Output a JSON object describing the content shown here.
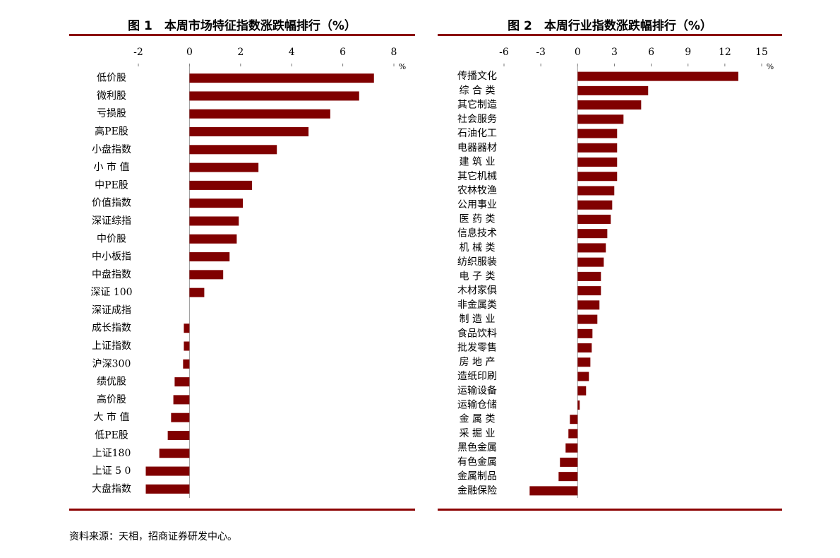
{
  "chart_data": [
    {
      "type": "bar",
      "orientation": "horizontal",
      "title": "图 1　本周市场特征指数涨跌幅排行（%）",
      "x_unit": "%",
      "color": "#800000",
      "categories": [
        "低价股",
        "微利股",
        "亏损股",
        "高PE股",
        "小盘指数",
        "小 市 值",
        "中PE股",
        "价值指数",
        "深证综指",
        "中价股",
        "中小板指",
        "中盘指数",
        "深证 100",
        "深证成指",
        "成长指数",
        "上证指数",
        "沪深300",
        "绩优股",
        "高价股",
        "大 市 值",
        "低PE股",
        "上证180",
        "上证 5 0",
        "大盘指数"
      ],
      "values": [
        7.22,
        6.64,
        5.51,
        4.66,
        3.42,
        2.7,
        2.45,
        2.09,
        1.93,
        1.85,
        1.57,
        1.32,
        0.58,
        0,
        -0.22,
        -0.22,
        -0.25,
        -0.58,
        -0.63,
        -0.72,
        -0.85,
        -1.18,
        -1.71,
        -1.71
      ],
      "xlim": [
        -2,
        8
      ],
      "xticks": [
        -2,
        0,
        2,
        4,
        6,
        8
      ]
    },
    {
      "type": "bar",
      "orientation": "horizontal",
      "title": "图 2　本周行业指数涨跌幅排行（%）",
      "x_unit": "%",
      "color": "#800000",
      "categories": [
        "传播文化",
        "综 合 类",
        "其它制造",
        "社会服务",
        "石油化工",
        "电器器材",
        "建 筑 业",
        "其它机械",
        "农林牧渔",
        "公用事业",
        "医 药 类",
        "信息技术",
        "机 械 类",
        "纺织服装",
        "电 子 类",
        "木材家俱",
        "非金属类",
        "制 造 业",
        "食品饮料",
        "批发零售",
        "房 地 产",
        "造纸印刷",
        "运输设备",
        "运输仓储",
        "金 属 类",
        "采 掘 业",
        "黑色金属",
        "有色金属",
        "金属制品",
        "金融保险"
      ],
      "values": [
        13.1,
        5.75,
        5.18,
        3.74,
        3.22,
        3.22,
        3.22,
        3.22,
        2.99,
        2.82,
        2.7,
        2.42,
        2.3,
        2.13,
        1.9,
        1.9,
        1.78,
        1.61,
        1.21,
        1.15,
        1.04,
        0.92,
        0.69,
        0.17,
        -0.63,
        -0.75,
        -0.98,
        -1.44,
        -1.55,
        -3.91
      ],
      "xlim": [
        -6,
        15
      ],
      "xticks": [
        -6,
        -3,
        0,
        3,
        6,
        9,
        12,
        15
      ]
    }
  ],
  "source": "资料来源：天相，招商证券研发中心。"
}
